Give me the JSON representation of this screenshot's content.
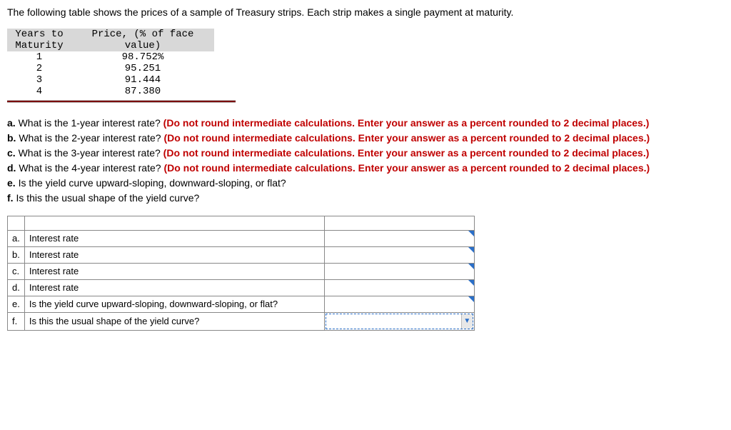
{
  "intro": "The following table shows the prices of a sample of Treasury strips. Each strip makes a single payment at maturity.",
  "priceTable": {
    "header": {
      "col1_line1": "Years to",
      "col1_line2": "Maturity",
      "col2_line1": "Price, (% of face",
      "col2_line2": "value)"
    },
    "rows": [
      {
        "years": "1",
        "price": "98.752%"
      },
      {
        "years": "2",
        "price": "95.251"
      },
      {
        "years": "3",
        "price": "91.444"
      },
      {
        "years": "4",
        "price": "87.380"
      }
    ]
  },
  "hintText": "(Do not round intermediate calculations. Enter your answer as a percent rounded to 2 decimal places.)",
  "questions": {
    "a": {
      "prefix": "a.",
      "text": "What is the 1-year interest rate?"
    },
    "b": {
      "prefix": "b.",
      "text": "What is the 2-year interest rate?"
    },
    "c": {
      "prefix": "c.",
      "text": "What is the 3-year interest rate?"
    },
    "d": {
      "prefix": "d.",
      "text": "What is the 4-year interest rate?"
    },
    "e": {
      "prefix": "e.",
      "text": "Is the yield curve upward-sloping, downward-sloping, or flat?"
    },
    "f": {
      "prefix": "f.",
      "text": "Is this the usual shape of the yield curve?"
    }
  },
  "answerTable": {
    "rows": [
      {
        "letter": "a.",
        "label": "Interest rate",
        "type": "numeric"
      },
      {
        "letter": "b.",
        "label": "Interest rate",
        "type": "numeric"
      },
      {
        "letter": "c.",
        "label": "Interest rate",
        "type": "numeric"
      },
      {
        "letter": "d.",
        "label": "Interest rate",
        "type": "numeric"
      },
      {
        "letter": "e.",
        "label": "Is the yield curve upward-sloping, downward-sloping, or flat?",
        "type": "numeric"
      },
      {
        "letter": "f.",
        "label": "Is this the usual shape of the yield curve?",
        "type": "dropdown"
      }
    ]
  },
  "colors": {
    "tableHeaderBg": "#d8d8d8",
    "hrBar": "#7a0000",
    "hintRed": "#c00000",
    "inputAccent": "#2a6fc9",
    "cellBorder": "#888888"
  }
}
